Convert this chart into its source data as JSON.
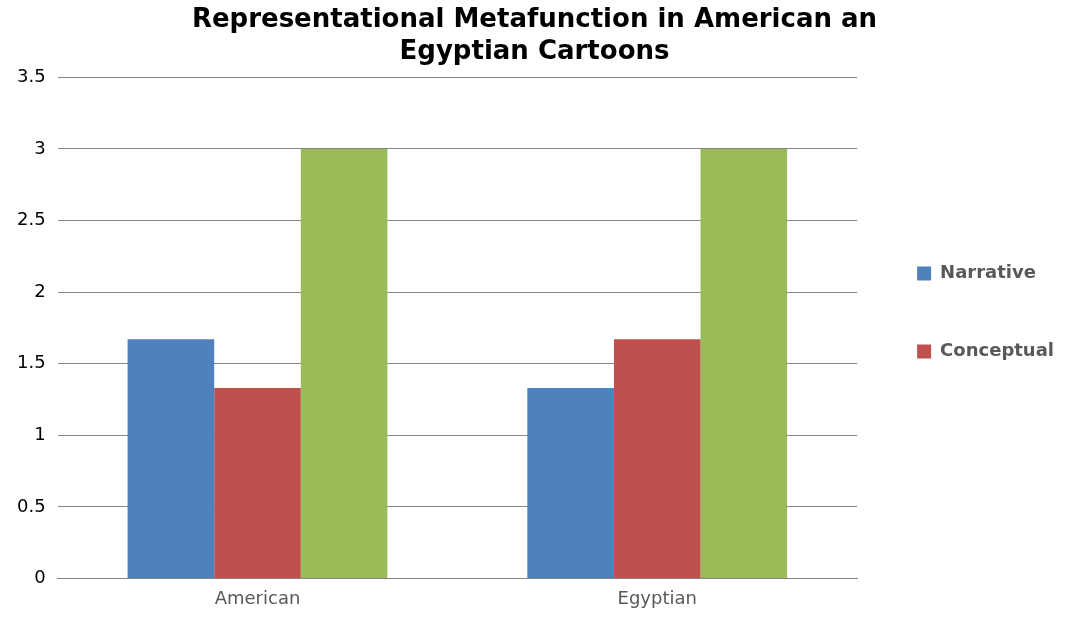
{
  "chart_data": {
    "type": "bar",
    "title": [
      "Representational Metafunction in American an",
      "Egyptian Cartoons"
    ],
    "categories": [
      "American",
      "Egyptian"
    ],
    "series": [
      {
        "name": "Narrative",
        "color": "#4f81bd",
        "values": [
          1.67,
          1.33
        ]
      },
      {
        "name": "Conceptual",
        "color": "#c0504d",
        "values": [
          1.33,
          1.67
        ]
      },
      {
        "color": "#9bbb59",
        "values": [
          3,
          3
        ]
      }
    ],
    "ylim": [
      0,
      3.5
    ],
    "yticks": [
      0,
      0.5,
      1,
      1.5,
      2,
      2.5,
      3,
      3.5
    ],
    "grid": "y",
    "legend": "right"
  }
}
